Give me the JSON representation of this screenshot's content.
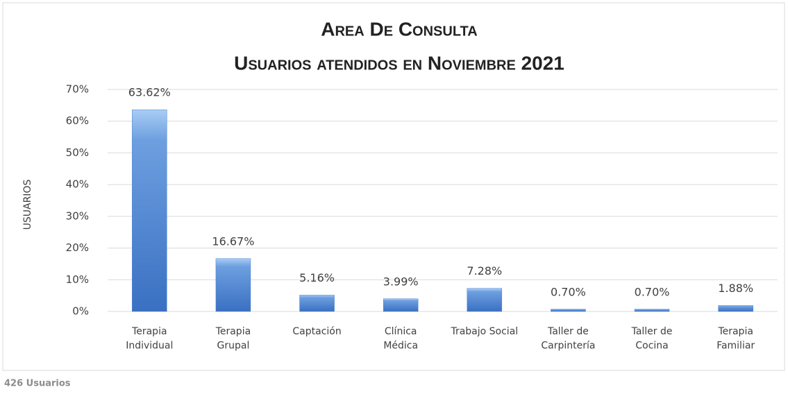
{
  "chart_data": {
    "type": "bar",
    "title": "Area De Consulta",
    "subtitle": "Usuarios atendidos en Noviembre 2021",
    "y_axis_label": "USUARIOS",
    "annotation": "426 Usuarios",
    "categories": [
      "Terapia\nIndividual",
      "Terapia\nGrupal",
      "Captación",
      "Clínica\nMédica",
      "Trabajo Social",
      "Taller de\nCarpintería",
      "Taller de\nCocina",
      "Terapia\nFamiliar"
    ],
    "values": [
      63.62,
      16.67,
      5.16,
      3.99,
      7.28,
      0.7,
      0.7,
      1.88
    ],
    "value_labels": [
      "63.62%",
      "16.67%",
      "5.16%",
      "3.99%",
      "7.28%",
      "0.70%",
      "0.70%",
      "1.88%"
    ],
    "color": "#4a80cc",
    "ylim": [
      0,
      70
    ],
    "yticks": [
      {
        "value": 0,
        "label": "0%"
      },
      {
        "value": 10,
        "label": "10%"
      },
      {
        "value": 20,
        "label": "20%"
      },
      {
        "value": 30,
        "label": "30%"
      },
      {
        "value": 40,
        "label": "40%"
      },
      {
        "value": 50,
        "label": "50%"
      },
      {
        "value": 60,
        "label": "60%"
      },
      {
        "value": 70,
        "label": "70%"
      }
    ],
    "grid": true
  }
}
